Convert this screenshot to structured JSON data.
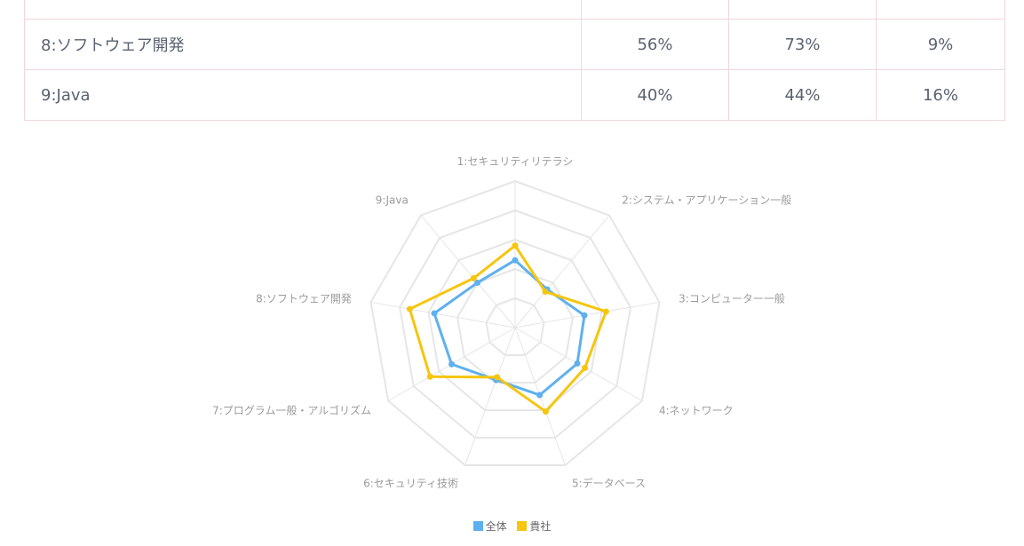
{
  "table": {
    "rows": [
      {
        "label": "",
        "cells": [
          "",
          "",
          ""
        ]
      },
      {
        "label": "8:ソフトウェア開発",
        "cells": [
          "56%",
          "73%",
          "9%"
        ]
      },
      {
        "label": "9:Java",
        "cells": [
          "40%",
          "44%",
          "16%"
        ]
      }
    ]
  },
  "chart_data": {
    "type": "radar",
    "categories": [
      "1:セキュリティリテラシ",
      "2:システム・アプリケーション一般",
      "3:コンピューター一般",
      "4:ネットワーク",
      "5:データベース",
      "6:セキュリティ技術",
      "7:プログラム一般・アルゴリズム",
      "8:ソフトウェア開発",
      "9:Java"
    ],
    "rlim": [
      0,
      100
    ],
    "grid": true,
    "legend_position": "bottom",
    "series": [
      {
        "name": "全体",
        "color": "#5fb0ee",
        "values": [
          46,
          34,
          48,
          49,
          49,
          38,
          50,
          56,
          40
        ]
      },
      {
        "name": "貴社",
        "color": "#f6c50e",
        "values": [
          56,
          32,
          63,
          55,
          61,
          36,
          67,
          73,
          44
        ]
      }
    ],
    "grid_color": "#e6e6e6",
    "label_color": "#9b9b9b"
  }
}
